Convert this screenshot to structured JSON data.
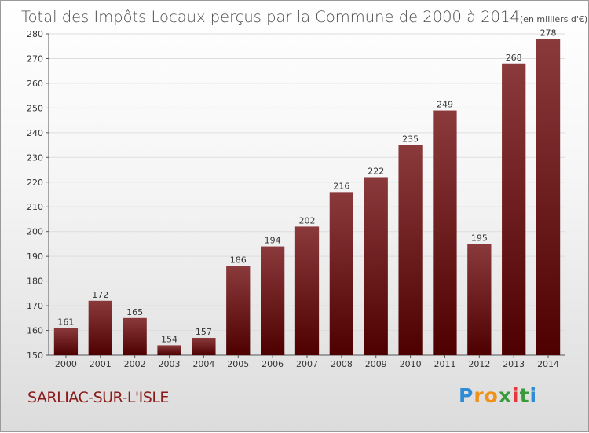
{
  "colors": {
    "bar_light": "#8b3a3c",
    "bar_dark": "#4e0000",
    "grid": "#dddddd",
    "commune": "#8c1a1a"
  },
  "commune_name": "SARLIAC-SUR-L'ISLE",
  "logo": {
    "letters": [
      "P",
      "r",
      "o",
      "x",
      "i",
      "t",
      "i"
    ],
    "letter_colors": [
      "#2e8bd6",
      "#f0911a",
      "#f0911a",
      "#3a9b3a",
      "#e23a3a",
      "#3a9b3a",
      "#2e8bd6"
    ]
  },
  "chart_data": {
    "type": "bar",
    "title": "Total des Impôts Locaux perçus par la Commune de 2000 à 2014",
    "subtitle": "(en milliers d'€)",
    "xlabel": "",
    "ylabel": "",
    "categories": [
      "2000",
      "2001",
      "2002",
      "2003",
      "2004",
      "2005",
      "2006",
      "2007",
      "2008",
      "2009",
      "2010",
      "2011",
      "2012",
      "2013",
      "2014"
    ],
    "values": [
      161,
      172,
      165,
      154,
      157,
      186,
      194,
      202,
      216,
      222,
      235,
      249,
      195,
      268,
      278
    ],
    "ylim": [
      150,
      280
    ],
    "yticks": [
      150,
      160,
      170,
      180,
      190,
      200,
      210,
      220,
      230,
      240,
      250,
      260,
      270,
      280
    ],
    "grid": true,
    "legend": "none"
  }
}
